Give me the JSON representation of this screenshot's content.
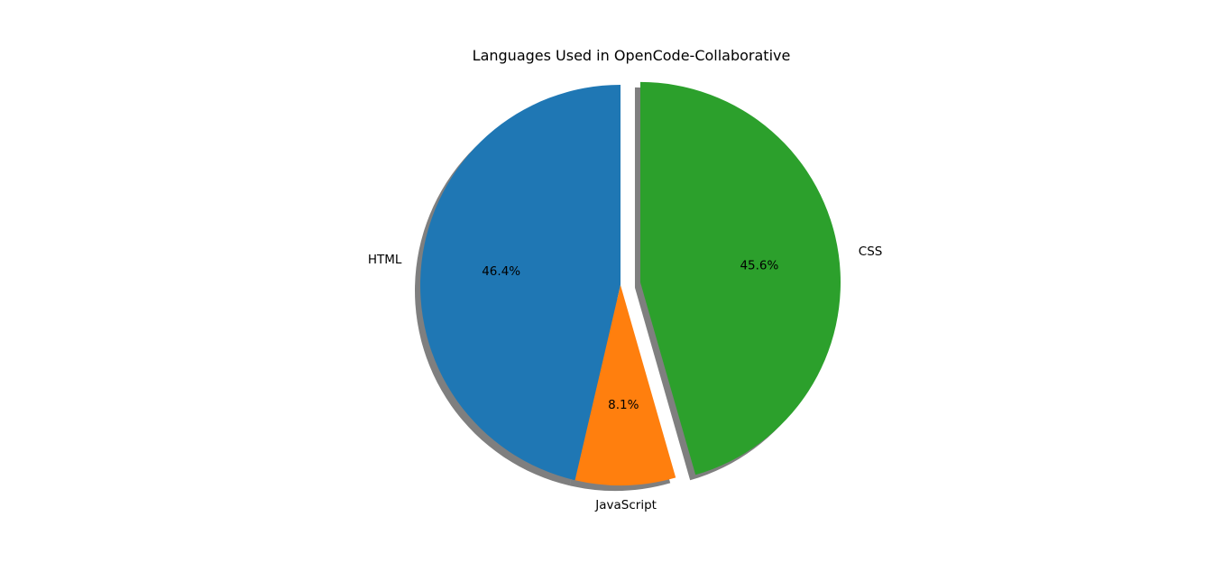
{
  "chart_data": {
    "type": "pie",
    "title": "Languages Used in OpenCode-Collaborative",
    "labels": [
      "HTML",
      "JavaScript",
      "CSS"
    ],
    "values": [
      46.4,
      8.1,
      45.6
    ],
    "percent_labels": [
      "46.4%",
      "8.1%",
      "45.6%"
    ],
    "colors": [
      "#1f77b4",
      "#ff7f0e",
      "#2ca02c"
    ],
    "explode": [
      0,
      0,
      0.1
    ],
    "start_angle_deg": 90,
    "direction": "counterclockwise",
    "shadow": true,
    "legend": false
  }
}
